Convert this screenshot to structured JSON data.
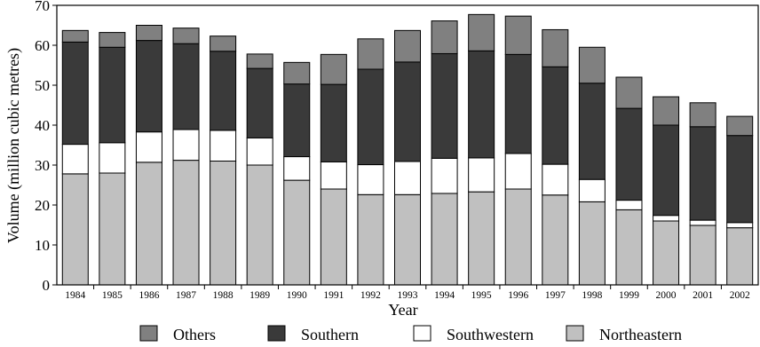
{
  "chart_data": {
    "type": "bar",
    "stacked": true,
    "categories": [
      "1984",
      "1985",
      "1986",
      "1987",
      "1988",
      "1989",
      "1990",
      "1991",
      "1992",
      "1993",
      "1994",
      "1995",
      "1996",
      "1997",
      "1998",
      "1999",
      "2000",
      "2001",
      "2002"
    ],
    "series": [
      {
        "name": "Northeastern",
        "color": "#c0c0c0",
        "values": [
          27.8,
          28.0,
          30.7,
          31.2,
          31.0,
          30.0,
          26.2,
          24.0,
          22.6,
          22.6,
          22.9,
          23.3,
          24.0,
          22.5,
          20.8,
          18.8,
          16.0,
          14.9,
          14.3
        ]
      },
      {
        "name": "Southwestern",
        "color": "#ffffff",
        "values": [
          7.4,
          7.6,
          7.6,
          7.7,
          7.7,
          6.8,
          5.9,
          6.8,
          7.5,
          8.3,
          8.8,
          8.5,
          8.9,
          7.7,
          5.6,
          2.4,
          1.4,
          1.3,
          1.3
        ]
      },
      {
        "name": "Southern",
        "color": "#3a3a3a",
        "values": [
          25.6,
          23.9,
          22.9,
          21.5,
          19.8,
          17.4,
          18.2,
          19.4,
          23.9,
          24.9,
          26.2,
          26.8,
          24.8,
          24.4,
          24.1,
          23.0,
          22.6,
          23.4,
          21.8
        ]
      },
      {
        "name": "Others",
        "color": "#808080",
        "values": [
          2.9,
          3.7,
          3.8,
          3.9,
          3.8,
          3.6,
          5.4,
          7.5,
          7.6,
          7.9,
          8.2,
          9.1,
          9.6,
          9.3,
          9.0,
          7.8,
          7.1,
          6.0,
          4.8
        ]
      }
    ],
    "legend_order": [
      "Others",
      "Southern",
      "Southwestern",
      "Northeastern"
    ],
    "xlabel": "Year",
    "ylabel": "Volume (million cubic metres)",
    "ylim": [
      0,
      70
    ],
    "yticks": [
      0,
      10,
      20,
      30,
      40,
      50,
      60,
      70
    ],
    "grid": false,
    "legend_position": "bottom"
  }
}
